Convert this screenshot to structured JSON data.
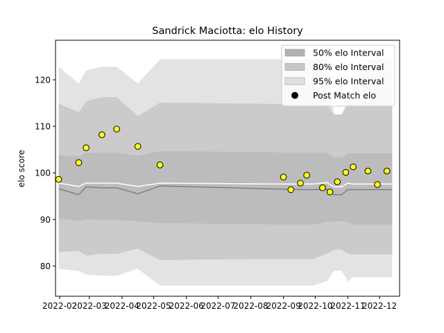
{
  "chart_data": {
    "type": "line",
    "title": "Sandrick Maciotta: elo History",
    "xlabel": "",
    "ylabel": "elo score",
    "xlim": [
      "2022-01-28",
      "2022-12-20"
    ],
    "ylim": [
      73.5,
      128.5
    ],
    "x_ticks": [
      "2022-02",
      "2022-03",
      "2022-04",
      "2022-05",
      "2022-06",
      "2022-07",
      "2022-08",
      "2022-09",
      "2022-10",
      "2022-11",
      "2022-12"
    ],
    "x_tick_dates": [
      "2022-02-01",
      "2022-03-01",
      "2022-04-01",
      "2022-05-01",
      "2022-06-01",
      "2022-07-01",
      "2022-08-01",
      "2022-09-01",
      "2022-10-01",
      "2022-11-01",
      "2022-12-01"
    ],
    "y_ticks": [
      80,
      90,
      100,
      110,
      120
    ],
    "grid": false,
    "legend_position": "top-right",
    "legend": [
      {
        "label": "50% elo Interval",
        "kind": "band50"
      },
      {
        "label": "80% elo Interval",
        "kind": "band80"
      },
      {
        "label": "95% elo Interval",
        "kind": "band95"
      },
      {
        "label": "Post Match elo",
        "kind": "marker"
      }
    ],
    "colors": {
      "band95": "#e3e3e3",
      "band80": "#cbcbcb",
      "band50": "#bcbcbc",
      "mean_line": "#ffffff",
      "median_line": "#7f7f7f",
      "marker_fill": "#ffff1a",
      "marker_edge": "#000000"
    },
    "band_dates": [
      "2022-01-31",
      "2022-02-19",
      "2022-02-26",
      "2022-03-13",
      "2022-03-27",
      "2022-04-16",
      "2022-05-07",
      "2022-09-01",
      "2022-09-08",
      "2022-09-22",
      "2022-09-29",
      "2022-10-12",
      "2022-10-19",
      "2022-10-26",
      "2022-11-01",
      "2022-11-06",
      "2022-11-20",
      "2022-12-05",
      "2022-12-13"
    ],
    "band95_low": [
      79.4,
      78.9,
      78.2,
      77.9,
      77.9,
      79.4,
      75.8,
      75.8,
      75.8,
      75.8,
      75.8,
      76.7,
      79.0,
      79.0,
      76.7,
      77.6,
      77.6,
      77.6,
      77.6
    ],
    "band95_high": [
      122.8,
      119.2,
      122.0,
      122.8,
      122.8,
      119.2,
      124.4,
      124.4,
      124.4,
      124.4,
      124.4,
      124.4,
      112.6,
      112.6,
      115.3,
      117.9,
      124.4,
      124.4,
      124.4
    ],
    "band80_low": [
      83.0,
      83.2,
      82.2,
      82.6,
      82.6,
      83.7,
      81.3,
      81.5,
      81.5,
      81.5,
      81.5,
      82.6,
      83.5,
      83.5,
      82.7,
      82.5,
      82.5,
      82.5,
      82.5
    ],
    "band80_high": [
      114.9,
      113.0,
      115.4,
      116.3,
      116.3,
      112.2,
      115.1,
      114.8,
      114.8,
      114.8,
      114.8,
      114.8,
      112.5,
      112.5,
      114.9,
      114.9,
      114.9,
      114.9,
      114.9
    ],
    "band50_low": [
      90.2,
      89.7,
      90.0,
      89.9,
      89.9,
      89.6,
      89.2,
      88.9,
      88.9,
      88.9,
      88.9,
      89.5,
      89.6,
      89.6,
      89.5,
      88.9,
      88.9,
      88.9,
      88.9
    ],
    "band50_high": [
      103.8,
      103.5,
      104.3,
      104.4,
      104.4,
      103.7,
      104.7,
      104.4,
      104.4,
      104.4,
      104.4,
      104.4,
      103.3,
      103.3,
      104.2,
      104.2,
      104.2,
      104.2,
      104.2
    ],
    "mean_line": [
      97.8,
      97.1,
      97.8,
      97.8,
      97.8,
      97.1,
      97.8,
      97.6,
      97.6,
      97.6,
      97.6,
      97.9,
      97.0,
      97.0,
      97.8,
      97.6,
      97.6,
      97.6,
      97.6
    ],
    "median_line": [
      96.6,
      95.3,
      97.0,
      96.8,
      96.8,
      95.5,
      97.2,
      96.5,
      96.5,
      96.4,
      96.4,
      96.5,
      95.3,
      95.3,
      96.4,
      96.4,
      96.4,
      96.4,
      96.4
    ],
    "points": [
      {
        "x": "2022-01-31",
        "y": 98.6
      },
      {
        "x": "2022-02-19",
        "y": 102.2
      },
      {
        "x": "2022-02-26",
        "y": 105.4
      },
      {
        "x": "2022-03-13",
        "y": 108.2
      },
      {
        "x": "2022-03-27",
        "y": 109.4
      },
      {
        "x": "2022-04-16",
        "y": 105.7
      },
      {
        "x": "2022-05-07",
        "y": 101.7
      },
      {
        "x": "2022-09-01",
        "y": 99.1
      },
      {
        "x": "2022-09-08",
        "y": 96.4
      },
      {
        "x": "2022-09-17",
        "y": 97.8
      },
      {
        "x": "2022-09-23",
        "y": 99.5
      },
      {
        "x": "2022-10-08",
        "y": 96.8
      },
      {
        "x": "2022-10-15",
        "y": 95.9
      },
      {
        "x": "2022-10-22",
        "y": 98.1
      },
      {
        "x": "2022-10-30",
        "y": 100.1
      },
      {
        "x": "2022-11-06",
        "y": 101.3
      },
      {
        "x": "2022-11-20",
        "y": 100.4
      },
      {
        "x": "2022-11-29",
        "y": 97.5
      },
      {
        "x": "2022-12-08",
        "y": 100.4
      }
    ]
  }
}
